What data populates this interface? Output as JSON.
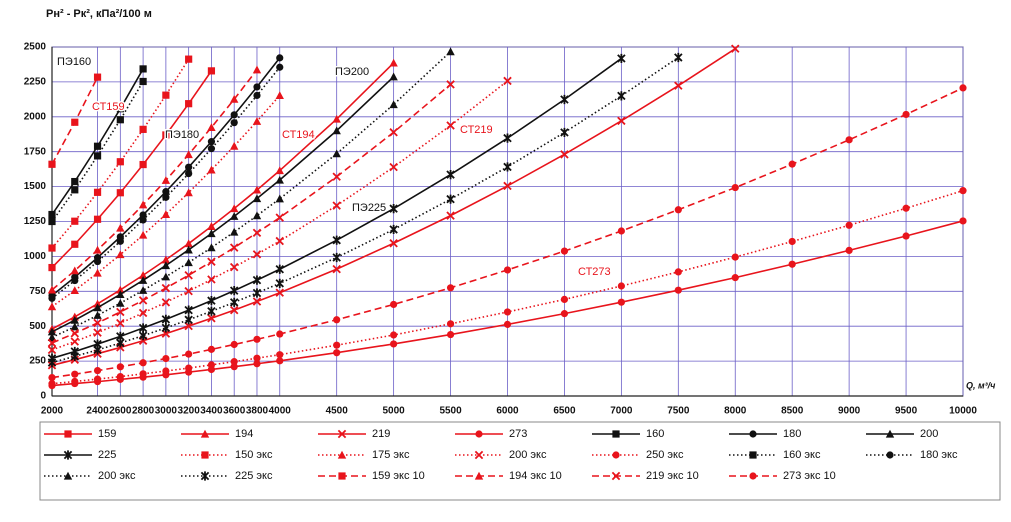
{
  "chart_data": {
    "type": "line",
    "y_label": "Pн² - Pк², кПа²/100 м",
    "x_label": "Q, м³/ч",
    "annotations": [
      "ПЭ160",
      "СТ159",
      "ПЭ180",
      "ПЭ200",
      "СТ194",
      "СТ219",
      "ПЭ225",
      "СТ273"
    ],
    "x": [
      2000,
      2200,
      2400,
      2600,
      2800,
      3000,
      3200,
      3400,
      3600,
      3800,
      4000,
      4500,
      5000,
      5500,
      6000,
      6500,
      7000,
      7500,
      8000,
      8500,
      9000,
      9500,
      10000
    ],
    "xlim": [
      2000,
      10000
    ],
    "xticks": [
      2000,
      2400,
      2600,
      2800,
      3000,
      3200,
      3400,
      3600,
      3800,
      4000,
      4500,
      5000,
      5500,
      6000,
      6500,
      7000,
      7500,
      8000,
      8500,
      9000,
      9500,
      10000
    ],
    "ylim": [
      0,
      2500
    ],
    "yticks": [
      0,
      250,
      500,
      750,
      1000,
      1250,
      1500,
      1750,
      2000,
      2250,
      2500
    ],
    "grid": true,
    "legend": "bottom",
    "series": [
      {
        "name": "159",
        "color": "#e8141c",
        "line": "solid",
        "marker": "square",
        "values": [
          920,
          1087,
          1266,
          1456,
          1658,
          1870,
          2094,
          2329,
          null,
          null,
          null,
          null,
          null,
          null,
          null,
          null,
          null,
          null,
          null,
          null,
          null,
          null,
          null
        ]
      },
      {
        "name": "194",
        "color": "#e8141c",
        "line": "solid",
        "marker": "triangle",
        "values": [
          480,
          567,
          660,
          760,
          865,
          976,
          1092,
          1215,
          1343,
          1476,
          1615,
          1984,
          2386,
          null,
          null,
          null,
          null,
          null,
          null,
          null,
          null,
          null,
          null
        ]
      },
      {
        "name": "219",
        "color": "#e8141c",
        "line": "solid",
        "marker": "x",
        "values": [
          220,
          260,
          303,
          348,
          396,
          447,
          501,
          557,
          615,
          677,
          740,
          909,
          1094,
          1292,
          1505,
          1731,
          1971,
          2223,
          2488,
          null,
          null,
          null,
          null
        ]
      },
      {
        "name": "273",
        "color": "#e8141c",
        "line": "solid",
        "marker": "circle",
        "values": [
          75,
          89,
          103,
          119,
          135,
          152,
          171,
          190,
          210,
          231,
          252,
          310,
          373,
          440,
          513,
          590,
          672,
          758,
          848,
          944,
          1043,
          1146,
          1254
        ]
      },
      {
        "name": "160",
        "color": "#111111",
        "line": "solid",
        "marker": "square",
        "values": [
          1300,
          1536,
          1789,
          2058,
          2343,
          null,
          null,
          null,
          null,
          null,
          null,
          null,
          null,
          null,
          null,
          null,
          null,
          null,
          null,
          null,
          null,
          null,
          null
        ]
      },
      {
        "name": "180",
        "color": "#111111",
        "line": "solid",
        "marker": "circle",
        "values": [
          720,
          851,
          991,
          1140,
          1297,
          1464,
          1639,
          1822,
          2014,
          2214,
          2422,
          null,
          null,
          null,
          null,
          null,
          null,
          null,
          null,
          null,
          null,
          null,
          null
        ]
      },
      {
        "name": "200",
        "color": "#111111",
        "line": "solid",
        "marker": "triangle",
        "values": [
          460,
          543,
          633,
          728,
          829,
          935,
          1047,
          1164,
          1287,
          1415,
          1547,
          1901,
          2287,
          null,
          null,
          null,
          null,
          null,
          null,
          null,
          null,
          null,
          null
        ]
      },
      {
        "name": "225",
        "color": "#111111",
        "line": "solid",
        "marker": "star",
        "values": [
          270,
          319,
          372,
          427,
          487,
          549,
          615,
          683,
          755,
          830,
          908,
          1116,
          1342,
          1586,
          1847,
          2124,
          2418,
          null,
          null,
          null,
          null,
          null,
          null
        ]
      },
      {
        "name": "150 экс",
        "color": "#e8141c",
        "line": "dotted",
        "marker": "square",
        "values": [
          1060,
          1252,
          1459,
          1678,
          1910,
          2155,
          2413,
          null,
          null,
          null,
          null,
          null,
          null,
          null,
          null,
          null,
          null,
          null,
          null,
          null,
          null,
          null,
          null
        ]
      },
      {
        "name": "175 экс",
        "color": "#e8141c",
        "line": "dotted",
        "marker": "triangle",
        "values": [
          640,
          756,
          881,
          1013,
          1153,
          1301,
          1457,
          1620,
          1790,
          1968,
          2153,
          null,
          null,
          null,
          null,
          null,
          null,
          null,
          null,
          null,
          null,
          null,
          null
        ]
      },
      {
        "name": "200 экс",
        "color": "#e8141c",
        "line": "dotted",
        "marker": "x",
        "values": [
          330,
          390,
          454,
          522,
          595,
          671,
          751,
          835,
          923,
          1015,
          1110,
          1364,
          1640,
          1938,
          2257,
          null,
          null,
          null,
          null,
          null,
          null,
          null,
          null
        ]
      },
      {
        "name": "250 экс",
        "color": "#e8141c",
        "line": "dotted",
        "marker": "circle",
        "values": [
          88,
          104,
          121,
          139,
          159,
          179,
          200,
          223,
          246,
          271,
          296,
          364,
          437,
          517,
          602,
          692,
          788,
          889,
          995,
          1107,
          1223,
          1345,
          1471
        ]
      },
      {
        "name": "160 экс",
        "color": "#111111",
        "line": "dotted",
        "marker": "square",
        "values": [
          1250,
          1477,
          1720,
          1979,
          2253,
          null,
          null,
          null,
          null,
          null,
          null,
          null,
          null,
          null,
          null,
          null,
          null,
          null,
          null,
          null,
          null,
          null,
          null
        ]
      },
      {
        "name": "180 экс",
        "color": "#111111",
        "line": "dotted",
        "marker": "circle",
        "values": [
          700,
          827,
          963,
          1108,
          1261,
          1423,
          1593,
          1772,
          1958,
          2153,
          2355,
          null,
          null,
          null,
          null,
          null,
          null,
          null,
          null,
          null,
          null,
          null,
          null
        ]
      },
      {
        "name": "200 экс",
        "color": "#111111",
        "line": "dotted",
        "marker": "triangle",
        "values": [
          420,
          496,
          578,
          665,
          757,
          854,
          956,
          1063,
          1175,
          1292,
          1413,
          1736,
          2088,
          2467,
          null,
          null,
          null,
          null,
          null,
          null,
          null,
          null,
          null
        ]
      },
      {
        "name": "225 экс",
        "color": "#111111",
        "line": "dotted",
        "marker": "star",
        "values": [
          240,
          284,
          330,
          380,
          432,
          488,
          546,
          607,
          671,
          738,
          807,
          992,
          1193,
          1410,
          1641,
          1888,
          2150,
          2425,
          null,
          null,
          null,
          null,
          null
        ]
      },
      {
        "name": "159 экс 10",
        "color": "#e8141c",
        "line": "dashed",
        "marker": "square",
        "values": [
          1660,
          1961,
          2284,
          null,
          null,
          null,
          null,
          null,
          null,
          null,
          null,
          null,
          null,
          null,
          null,
          null,
          null,
          null,
          null,
          null,
          null,
          null,
          null
        ]
      },
      {
        "name": "194 экс 10",
        "color": "#e8141c",
        "line": "dashed",
        "marker": "triangle",
        "values": [
          760,
          898,
          1046,
          1203,
          1370,
          1545,
          1730,
          1924,
          2126,
          2337,
          null,
          null,
          null,
          null,
          null,
          null,
          null,
          null,
          null,
          null,
          null,
          null,
          null
        ]
      },
      {
        "name": "219 экс 10",
        "color": "#e8141c",
        "line": "dashed",
        "marker": "x",
        "values": [
          380,
          449,
          523,
          602,
          685,
          773,
          865,
          962,
          1063,
          1169,
          1278,
          1571,
          1889,
          2232,
          null,
          null,
          null,
          null,
          null,
          null,
          null,
          null,
          null
        ]
      },
      {
        "name": "273 экс 10",
        "color": "#e8141c",
        "line": "dashed",
        "marker": "circle",
        "values": [
          132,
          156,
          182,
          209,
          238,
          268,
          300,
          334,
          369,
          406,
          444,
          546,
          656,
          775,
          903,
          1038,
          1182,
          1334,
          1493,
          1661,
          1835,
          2017,
          2207
        ]
      }
    ]
  }
}
